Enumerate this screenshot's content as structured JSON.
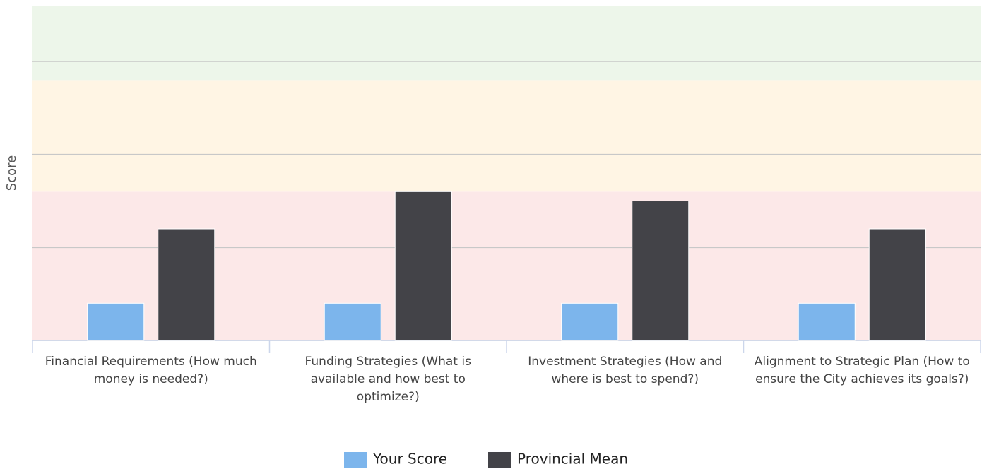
{
  "chart_data": {
    "type": "bar",
    "y_label": "Score",
    "categories": [
      "Financial Requirements (How much money is needed?)",
      "Funding Strategies (What is available and how best to optimize?)",
      "Investment Strategies (How and where is best to spend?)",
      "Alignment to Strategic Plan (How to ensure the City achieves its goals?)"
    ],
    "series": [
      {
        "name": "Your Score",
        "color": "#7cb5ec",
        "values": [
          0.4,
          0.4,
          0.4,
          0.4
        ]
      },
      {
        "name": "Provincial Mean",
        "color": "#434348",
        "values": [
          1.2,
          1.6,
          1.5,
          1.2
        ]
      }
    ],
    "ylim": [
      0,
      3.6
    ],
    "yticks": [
      0,
      1,
      2,
      3
    ],
    "grid": true,
    "ytick_labels": false,
    "bands": [
      {
        "from": 0,
        "to": 1.6,
        "color": "#fce8e8"
      },
      {
        "from": 1.6,
        "to": 2.8,
        "color": "#fff5e4"
      },
      {
        "from": 2.8,
        "to": 3.6,
        "color": "#edf6ea"
      }
    ],
    "legend": "bottom"
  }
}
